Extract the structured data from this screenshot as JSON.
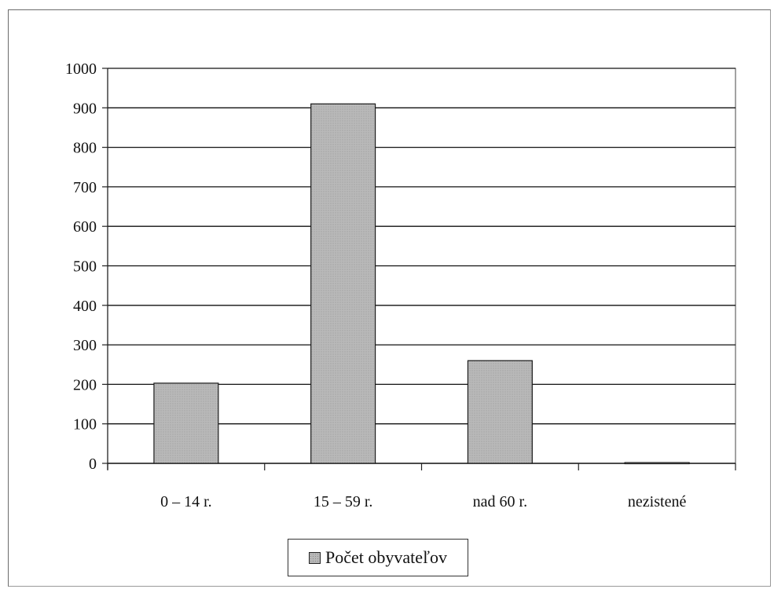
{
  "chart_data": {
    "type": "bar",
    "categories": [
      "0 – 14 r.",
      "15 – 59 r.",
      "nad 60 r.",
      "nezistené"
    ],
    "series": [
      {
        "name": "Počet obyvateľov",
        "values": [
          203,
          910,
          260,
          2
        ]
      }
    ],
    "ylim": [
      0,
      1000
    ],
    "yticks": [
      "0",
      "100",
      "200",
      "300",
      "400",
      "500",
      "600",
      "700",
      "800",
      "900",
      "1000"
    ],
    "grid": true,
    "legend_position": "bottom-center",
    "colors": {
      "bar": "#b9b9b9",
      "bar_border": "#1a1a1a",
      "grid": "#111111"
    }
  },
  "legend": {
    "label": "Počet obyvateľov"
  }
}
